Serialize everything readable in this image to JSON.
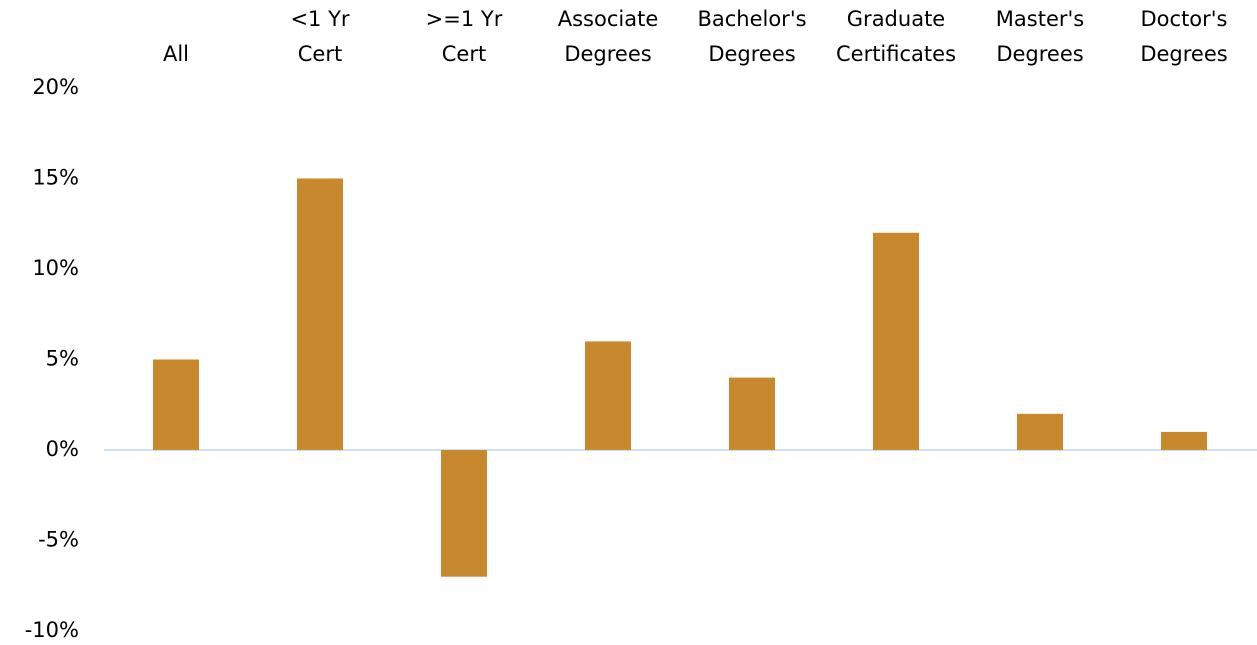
{
  "chart_data": {
    "type": "bar",
    "categories": [
      [
        "All"
      ],
      [
        "<1 Yr",
        "Cert"
      ],
      [
        ">=1 Yr",
        "Cert"
      ],
      [
        "Associate",
        "Degrees"
      ],
      [
        "Bachelor's",
        "Degrees"
      ],
      [
        "Graduate",
        "Certificates"
      ],
      [
        "Master's",
        "Degrees"
      ],
      [
        "Doctor's",
        "Degrees"
      ]
    ],
    "values": [
      5,
      15,
      -7,
      6,
      4,
      12,
      2,
      1
    ],
    "color": "#c8892e",
    "ylim": [
      -10,
      20
    ],
    "yticks": [
      {
        "value": -10,
        "label": "-10%"
      },
      {
        "value": -5,
        "label": "-5%"
      },
      {
        "value": 0,
        "label": "0%"
      },
      {
        "value": 5,
        "label": "5%"
      },
      {
        "value": 10,
        "label": "10%"
      },
      {
        "value": 15,
        "label": "15%"
      },
      {
        "value": 20,
        "label": "20%"
      }
    ],
    "grid": false
  }
}
